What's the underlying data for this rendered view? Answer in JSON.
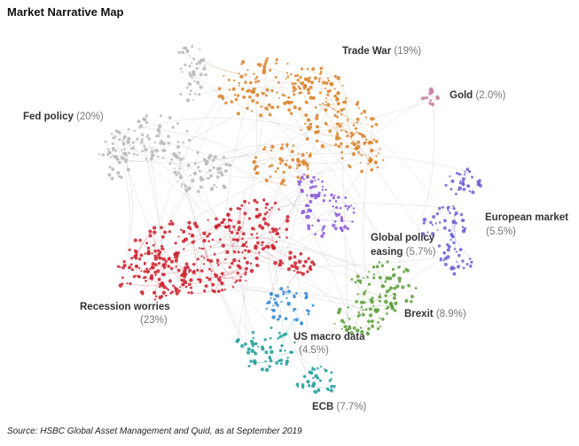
{
  "title": "Market Narrative Map",
  "source": "Source: HSBC Global Asset Management and Quid, as at September 2019",
  "clusters": [
    {
      "id": "trade-war",
      "label": "Trade War",
      "pct": "(19%)",
      "color": "#d9822b"
    },
    {
      "id": "gold",
      "label": "Gold",
      "pct": "(2.0%)",
      "color": "#c97fa0"
    },
    {
      "id": "fed-policy",
      "label": "Fed policy",
      "pct": "(20%)",
      "color": "#b9b9b9"
    },
    {
      "id": "european-market",
      "label": "European market",
      "pct": "(5.5%)",
      "color": "#6a5fd1"
    },
    {
      "id": "global-policy-easing",
      "label1": "Global policy",
      "label2": "easing",
      "pct": "(5.7%)",
      "color": "#8c5bd6"
    },
    {
      "id": "recession-worries",
      "label": "Recession worries",
      "pct": "(23%)",
      "color": "#cc1e2b"
    },
    {
      "id": "brexit",
      "label": "Brexit",
      "pct": "(8.9%)",
      "color": "#5a9e3a"
    },
    {
      "id": "us-macro-data",
      "label": "US macro data",
      "pct": "(4.5%)",
      "color": "#2f86d6"
    },
    {
      "id": "ecb",
      "label": "ECB",
      "pct": "(7.7%)",
      "color": "#1e9e9a"
    }
  ]
}
